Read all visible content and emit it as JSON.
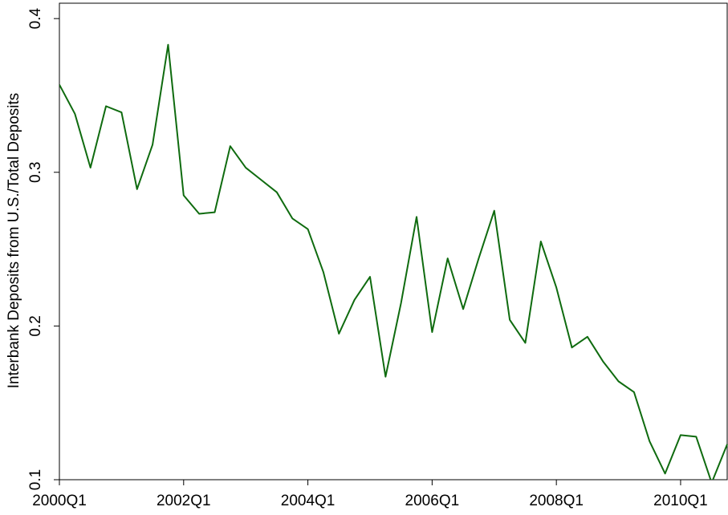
{
  "chart_data": {
    "type": "line",
    "y_label": "Interbank Deposits from U.S./Total Deposits",
    "categories": [
      "2000Q1",
      null,
      null,
      null,
      null,
      null,
      null,
      null,
      "2002Q1",
      null,
      null,
      null,
      null,
      null,
      null,
      null,
      "2004Q1",
      null,
      null,
      null,
      null,
      null,
      null,
      null,
      "2006Q1",
      null,
      null,
      null,
      null,
      null,
      null,
      null,
      "2008Q1",
      null,
      null,
      null,
      null,
      null,
      null,
      null,
      "2010Q1",
      null,
      null,
      null
    ],
    "series": [
      {
        "color": "#0f6b0f",
        "values": [
          0.357,
          0.338,
          0.303,
          0.343,
          0.339,
          0.289,
          0.318,
          0.383,
          0.285,
          0.273,
          0.274,
          0.317,
          0.303,
          0.295,
          0.287,
          0.27,
          0.263,
          0.235,
          0.195,
          0.217,
          0.232,
          0.167,
          0.215,
          0.271,
          0.196,
          0.244,
          0.211,
          0.244,
          0.275,
          0.204,
          0.189,
          0.255,
          0.225,
          0.186,
          0.193,
          0.177,
          0.164,
          0.157,
          0.125,
          0.104,
          0.129,
          0.128,
          0.098,
          0.123
        ]
      }
    ],
    "ylim": [
      0.1,
      0.41
    ],
    "yticks": [
      0.1,
      0.2,
      0.3,
      0.4
    ],
    "grid": false
  }
}
